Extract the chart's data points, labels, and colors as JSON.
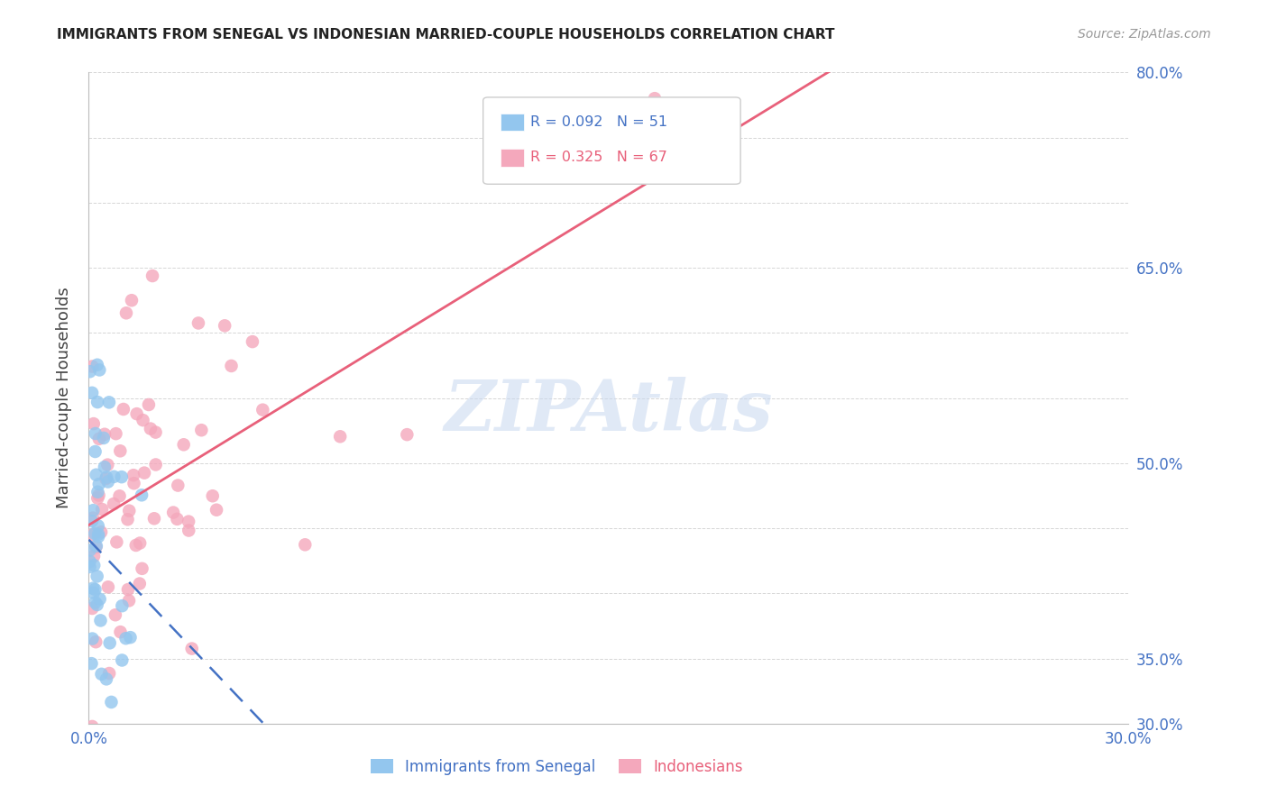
{
  "title": "IMMIGRANTS FROM SENEGAL VS INDONESIAN MARRIED-COUPLE HOUSEHOLDS CORRELATION CHART",
  "source": "Source: ZipAtlas.com",
  "ylabel": "Married-couple Households",
  "xmin": 0.0,
  "xmax": 0.3,
  "ymin": 0.3,
  "ymax": 0.8,
  "ytick_vals": [
    0.3,
    0.35,
    0.4,
    0.45,
    0.5,
    0.55,
    0.6,
    0.65,
    0.7,
    0.75,
    0.8
  ],
  "ytick_labels_right": [
    "30.0%",
    "35.0%",
    "",
    "",
    "50.0%",
    "",
    "",
    "65.0%",
    "",
    "",
    "80.0%"
  ],
  "blue_color": "#93C6EE",
  "pink_color": "#F4A8BC",
  "blue_line_color": "#4472C4",
  "pink_line_color": "#E8607A",
  "grid_color": "#CCCCCC",
  "watermark": "ZIPAtlas",
  "watermark_color": "#C8D8F0",
  "legend_label1": "Immigrants from Senegal",
  "legend_label2": "Indonesians",
  "title_color": "#222222",
  "source_color": "#999999",
  "axis_label_color": "#4472C4",
  "ylabel_color": "#444444"
}
